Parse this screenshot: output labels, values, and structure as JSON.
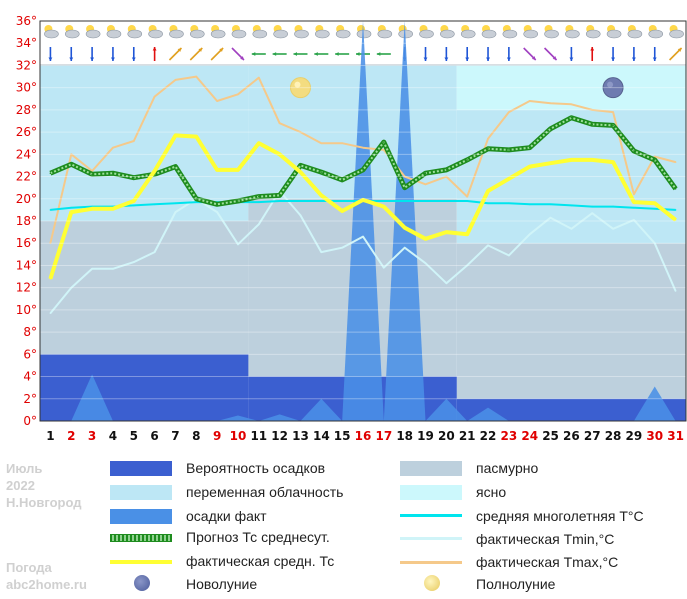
{
  "chart_data": {
    "type": "line",
    "x": [
      1,
      2,
      3,
      4,
      5,
      6,
      7,
      8,
      9,
      10,
      11,
      12,
      13,
      14,
      15,
      16,
      17,
      18,
      19,
      20,
      21,
      22,
      23,
      24,
      25,
      26,
      27,
      28,
      29,
      30,
      31
    ],
    "x_red": [
      2,
      3,
      9,
      10,
      16,
      17,
      23,
      24,
      30,
      31
    ],
    "ylim": [
      0,
      36
    ],
    "y_ticks": [
      "0°",
      "2°",
      "4°",
      "6°",
      "8°",
      "10°",
      "12°",
      "14°",
      "16°",
      "18°",
      "20°",
      "22°",
      "24°",
      "26°",
      "28°",
      "30°",
      "32°",
      "34°",
      "36°"
    ],
    "series": [
      {
        "name": "Прогноз Тс среднесут.",
        "color": "#1e8c1e",
        "values": [
          22.3,
          23.1,
          22.2,
          22.3,
          21.9,
          22.2,
          22.9,
          20.0,
          19.5,
          19.8,
          20.2,
          20.3,
          23.0,
          22.4,
          21.7,
          22.6,
          25.1,
          21.0,
          22.3,
          22.6,
          23.5,
          24.5,
          24.4,
          24.6,
          26.3,
          27.3,
          26.7,
          26.6,
          24.3,
          23.5,
          20.9
        ]
      },
      {
        "name": "фактическая средн. Тс",
        "color": "#ffff33",
        "values": [
          12.8,
          18.8,
          19.1,
          19.1,
          19.8,
          22.5,
          25.7,
          25.6,
          22.6,
          22.6,
          25.0,
          24.0,
          22.4,
          20.3,
          18.9,
          19.9,
          19.3,
          17.4,
          16.4,
          17.0,
          16.8,
          20.7,
          21.8,
          22.9,
          23.2,
          23.5,
          23.5,
          23.3,
          19.7,
          19.6,
          18.1
        ]
      },
      {
        "name": "фактическая Тmin,°C",
        "color": "#d0f4f8",
        "values": [
          9.7,
          12.0,
          13.7,
          13.7,
          14.3,
          15.2,
          18.8,
          20.0,
          18.8,
          15.9,
          17.7,
          20.7,
          18.5,
          15.2,
          15.6,
          16.6,
          13.8,
          15.6,
          14.2,
          12.4,
          14.0,
          15.8,
          14.9,
          16.8,
          18.3,
          17.3,
          18.7,
          17.3,
          18.1,
          16.0,
          11.7
        ]
      },
      {
        "name": "фактическая Тmax,°C",
        "color": "#f5c98a",
        "values": [
          16.0,
          24.0,
          22.5,
          24.6,
          25.2,
          29.2,
          30.7,
          31.0,
          28.8,
          29.4,
          30.9,
          26.8,
          26.0,
          25.0,
          25.0,
          24.6,
          24.4,
          22.0,
          21.3,
          22.0,
          20.2,
          25.4,
          27.8,
          28.8,
          28.6,
          28.5,
          28.0,
          27.8,
          20.4,
          23.8,
          23.3
        ]
      },
      {
        "name": "средняя многолетняя T°C",
        "color": "#00e5ee",
        "values": [
          19.0,
          19.2,
          19.3,
          19.3,
          19.4,
          19.5,
          19.6,
          19.7,
          19.7,
          19.7,
          19.7,
          19.8,
          19.8,
          19.8,
          19.8,
          19.8,
          19.8,
          19.8,
          19.8,
          19.8,
          19.8,
          19.6,
          19.6,
          19.5,
          19.5,
          19.4,
          19.3,
          19.3,
          19.2,
          19.1,
          19.0
        ]
      }
    ],
    "precip_fact": [
      0,
      0,
      4.2,
      0,
      0,
      0,
      0,
      0,
      0,
      0.5,
      0,
      0.6,
      0,
      2.0,
      0,
      36,
      0,
      36,
      0,
      2.0,
      0,
      1.2,
      0,
      0,
      0,
      0,
      0,
      0,
      0,
      3.1,
      0
    ],
    "precip_probability": [
      {
        "from": 1,
        "to": 10,
        "value": 6
      },
      {
        "from": 11,
        "to": 20,
        "value": 4
      },
      {
        "from": 21,
        "to": 31,
        "value": 2
      }
    ],
    "cloud_bands": [
      {
        "from": 1,
        "to": 10,
        "top": 18,
        "bottom": 6,
        "kind": "пасмурно"
      },
      {
        "from": 1,
        "to": 10,
        "top": 32,
        "bottom": 18,
        "kind": "переменная облачность"
      },
      {
        "from": 11,
        "to": 20,
        "top": 20,
        "bottom": 4,
        "kind": "пасмурно"
      },
      {
        "from": 11,
        "to": 20,
        "top": 32,
        "bottom": 20,
        "kind": "переменная облачность"
      },
      {
        "from": 21,
        "to": 31,
        "top": 16,
        "bottom": 2,
        "kind": "пасмурно"
      },
      {
        "from": 21,
        "to": 31,
        "top": 28,
        "bottom": 16,
        "kind": "переменная облачность"
      },
      {
        "from": 21,
        "to": 31,
        "top": 32,
        "bottom": 28,
        "kind": "ясно"
      }
    ],
    "moon": [
      {
        "kind": "full",
        "day": 13,
        "y": 30
      },
      {
        "kind": "new",
        "day": 28,
        "y": 30
      }
    ],
    "wind_arrows": [
      "down",
      "down",
      "down",
      "down",
      "down",
      "up",
      "upright",
      "upright",
      "upright",
      "downright",
      "left",
      "left",
      "left",
      "left",
      "left",
      "left",
      "left",
      "down",
      "down",
      "down",
      "down",
      "down",
      "down",
      "downright",
      "downright",
      "down",
      "up",
      "down",
      "down",
      "down",
      "upright"
    ]
  },
  "side": {
    "month": "Июль",
    "year": "2022",
    "city": "Н.Новгород",
    "site_title": "Погода",
    "site_url": "abc2home.ru"
  },
  "legend": {
    "precip_probability": "Вероятность осадков",
    "variable_clouds": "переменная облачность",
    "precip_fact": "осадки факт",
    "forecast_avg": "Прогноз Тс среднесут.",
    "fact_avg": "фактическая средн. Тс",
    "new_moon": "Новолуние",
    "overcast": "пасмурно",
    "clear": "ясно",
    "climate_avg": "средняя многолетняя T°C",
    "fact_min": "фактическая Тmin,°C",
    "fact_max": "фактическая Тmax,°C",
    "full_moon": "Полнолуние"
  },
  "colors": {
    "overcast": "#bdd0dd",
    "variable": "#bde7f5",
    "clear": "#ccf8fc",
    "precip_prob": "#3b5fd0",
    "precip_fact": "#4a90e6",
    "forecast": "#1e8c1e",
    "fact_avg": "#ffff33",
    "climate": "#00e5ee",
    "tmin": "#d0f4f8",
    "tmax": "#f5c98a",
    "red_day": "#e00000"
  }
}
